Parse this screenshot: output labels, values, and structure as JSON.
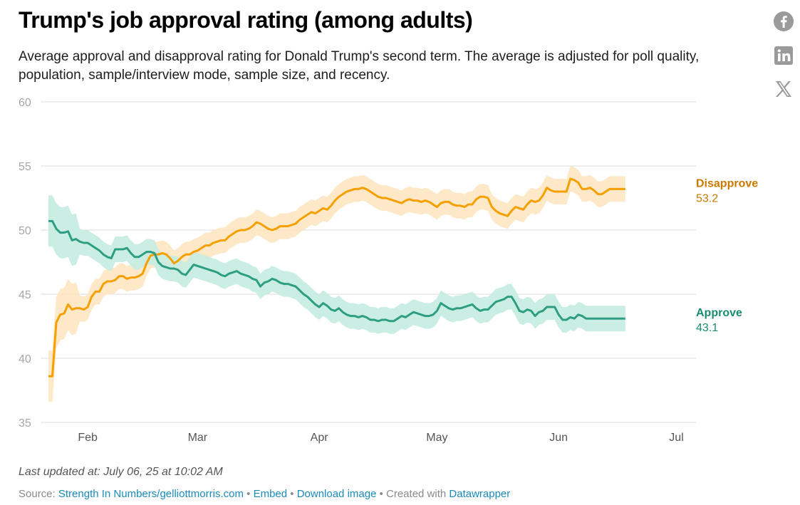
{
  "title": "Trump's job approval rating (among adults)",
  "subtitle": "Average approval and disapproval rating for Donald Trump's second term. The average is adjusted for poll quality, population, sample/interview mode, sample size, and recency.",
  "share_icons": [
    "facebook-icon",
    "linkedin-icon",
    "x-icon"
  ],
  "footer": {
    "updated": "Last updated at: July 06, 25 at 10:02 AM",
    "source_label": "Source: ",
    "source_link": "Strength In Numbers/gelliottmorris.com",
    "sep1": " • ",
    "embed": "Embed",
    "sep2": " • ",
    "download": "Download image",
    "created_prefix": " • Created with ",
    "created_link": "Datawrapper"
  },
  "colors": {
    "approve": "#2e9e83",
    "approve_band": "#c5ece1",
    "disapprove": "#f5a000",
    "disapprove_band": "#fde6c2",
    "approve_label": "#1a8c70",
    "disapprove_label": "#c97a00",
    "grid": "#dcdcdc",
    "link": "#1a8bbd"
  },
  "chart_data": {
    "type": "line",
    "title": "Trump's job approval rating (among adults)",
    "xlabel": "",
    "ylabel": "",
    "ylim": [
      35,
      60
    ],
    "yticks": [
      35,
      40,
      45,
      50,
      55,
      60
    ],
    "xlim": [
      20,
      187
    ],
    "x_unit": "day of year 2025",
    "xticks": [
      {
        "day": 32,
        "label": "Feb"
      },
      {
        "day": 60,
        "label": "Mar"
      },
      {
        "day": 91,
        "label": "Apr"
      },
      {
        "day": 121,
        "label": "May"
      },
      {
        "day": 152,
        "label": "Jun"
      },
      {
        "day": 182,
        "label": "Jul"
      }
    ],
    "end_day": 187,
    "series": [
      {
        "name": "Disapprove",
        "end_value": "53.2",
        "points": [
          [
            22,
            38.6
          ],
          [
            23,
            38.6
          ],
          [
            24,
            42.8
          ],
          [
            25,
            43.4
          ],
          [
            26,
            43.5
          ],
          [
            27,
            44.2
          ],
          [
            28,
            43.8
          ],
          [
            29,
            43.9
          ],
          [
            30,
            43.9
          ],
          [
            31,
            43.8
          ],
          [
            32,
            44.0
          ],
          [
            33,
            44.8
          ],
          [
            34,
            45.2
          ],
          [
            35,
            45.2
          ],
          [
            36,
            45.8
          ],
          [
            37,
            46.0
          ],
          [
            38,
            46.0
          ],
          [
            39,
            46.1
          ],
          [
            40,
            46.4
          ],
          [
            41,
            46.4
          ],
          [
            42,
            46.2
          ],
          [
            43,
            46.3
          ],
          [
            44,
            46.3
          ],
          [
            45,
            46.4
          ],
          [
            46,
            46.6
          ],
          [
            47,
            47.4
          ],
          [
            48,
            48.0
          ],
          [
            49,
            48.1
          ],
          [
            50,
            48.1
          ],
          [
            51,
            48.2
          ],
          [
            52,
            48.1
          ],
          [
            53,
            47.8
          ],
          [
            54,
            47.4
          ],
          [
            55,
            47.6
          ],
          [
            56,
            47.9
          ],
          [
            57,
            48.1
          ],
          [
            58,
            48.1
          ],
          [
            59,
            48.3
          ],
          [
            60,
            48.4
          ],
          [
            61,
            48.6
          ],
          [
            62,
            48.8
          ],
          [
            63,
            48.8
          ],
          [
            64,
            49.0
          ],
          [
            65,
            49.1
          ],
          [
            66,
            49.2
          ],
          [
            67,
            49.2
          ],
          [
            68,
            49.5
          ],
          [
            69,
            49.7
          ],
          [
            70,
            49.9
          ],
          [
            71,
            50.0
          ],
          [
            72,
            50.0
          ],
          [
            73,
            50.1
          ],
          [
            74,
            50.3
          ],
          [
            75,
            50.6
          ],
          [
            76,
            50.5
          ],
          [
            77,
            50.3
          ],
          [
            78,
            50.1
          ],
          [
            79,
            50.0
          ],
          [
            80,
            50.1
          ],
          [
            81,
            50.3
          ],
          [
            82,
            50.3
          ],
          [
            83,
            50.3
          ],
          [
            84,
            50.4
          ],
          [
            85,
            50.5
          ],
          [
            86,
            50.8
          ],
          [
            87,
            51.0
          ],
          [
            88,
            51.2
          ],
          [
            89,
            51.4
          ],
          [
            90,
            51.3
          ],
          [
            91,
            51.5
          ],
          [
            92,
            51.7
          ],
          [
            93,
            51.6
          ],
          [
            94,
            51.9
          ],
          [
            95,
            52.3
          ],
          [
            96,
            52.6
          ],
          [
            97,
            52.8
          ],
          [
            98,
            53.0
          ],
          [
            99,
            53.1
          ],
          [
            100,
            53.2
          ],
          [
            101,
            53.2
          ],
          [
            102,
            53.3
          ],
          [
            103,
            53.2
          ],
          [
            104,
            53.0
          ],
          [
            105,
            52.8
          ],
          [
            106,
            52.6
          ],
          [
            107,
            52.5
          ],
          [
            108,
            52.5
          ],
          [
            109,
            52.4
          ],
          [
            110,
            52.3
          ],
          [
            111,
            52.2
          ],
          [
            112,
            52.1
          ],
          [
            113,
            52.3
          ],
          [
            114,
            52.4
          ],
          [
            115,
            52.3
          ],
          [
            116,
            52.3
          ],
          [
            117,
            52.2
          ],
          [
            118,
            52.3
          ],
          [
            119,
            52.2
          ],
          [
            120,
            52.0
          ],
          [
            121,
            51.8
          ],
          [
            122,
            52.1
          ],
          [
            123,
            52.2
          ],
          [
            124,
            52.2
          ],
          [
            125,
            52.0
          ],
          [
            126,
            51.9
          ],
          [
            127,
            51.9
          ],
          [
            128,
            51.8
          ],
          [
            129,
            52.0
          ],
          [
            130,
            52.0
          ],
          [
            131,
            52.4
          ],
          [
            132,
            52.6
          ],
          [
            133,
            52.6
          ],
          [
            134,
            52.5
          ],
          [
            135,
            51.8
          ],
          [
            136,
            51.5
          ],
          [
            137,
            51.3
          ],
          [
            138,
            51.2
          ],
          [
            139,
            51.1
          ],
          [
            140,
            51.5
          ],
          [
            141,
            51.8
          ],
          [
            142,
            51.7
          ],
          [
            143,
            51.6
          ],
          [
            144,
            52.0
          ],
          [
            145,
            52.3
          ],
          [
            146,
            52.2
          ],
          [
            147,
            52.3
          ],
          [
            148,
            52.7
          ],
          [
            149,
            53.3
          ],
          [
            150,
            53.1
          ],
          [
            151,
            53.0
          ],
          [
            152,
            53.0
          ],
          [
            153,
            53.0
          ],
          [
            154,
            53.0
          ],
          [
            155,
            54.0
          ],
          [
            156,
            53.9
          ],
          [
            157,
            53.7
          ],
          [
            158,
            53.2
          ],
          [
            159,
            53.2
          ],
          [
            160,
            53.3
          ],
          [
            161,
            53.1
          ],
          [
            162,
            52.8
          ],
          [
            163,
            52.8
          ],
          [
            164,
            53.0
          ],
          [
            165,
            53.2
          ],
          [
            166,
            53.2
          ],
          [
            167,
            53.2
          ],
          [
            168,
            53.2
          ],
          [
            169,
            53.2
          ]
        ]
      },
      {
        "name": "Approve",
        "end_value": "43.1",
        "points": [
          [
            22,
            50.7
          ],
          [
            23,
            50.7
          ],
          [
            24,
            50.1
          ],
          [
            25,
            49.8
          ],
          [
            26,
            49.8
          ],
          [
            27,
            49.9
          ],
          [
            28,
            49.2
          ],
          [
            29,
            49.3
          ],
          [
            30,
            49.1
          ],
          [
            31,
            49.0
          ],
          [
            32,
            49.0
          ],
          [
            33,
            48.8
          ],
          [
            34,
            48.6
          ],
          [
            35,
            48.4
          ],
          [
            36,
            48.1
          ],
          [
            37,
            47.9
          ],
          [
            38,
            47.8
          ],
          [
            39,
            48.5
          ],
          [
            40,
            48.5
          ],
          [
            41,
            48.5
          ],
          [
            42,
            48.6
          ],
          [
            43,
            48.2
          ],
          [
            44,
            47.9
          ],
          [
            45,
            47.9
          ],
          [
            46,
            48.1
          ],
          [
            47,
            48.3
          ],
          [
            48,
            48.3
          ],
          [
            49,
            48.2
          ],
          [
            50,
            47.5
          ],
          [
            51,
            47.2
          ],
          [
            52,
            47.1
          ],
          [
            53,
            47.0
          ],
          [
            54,
            47.0
          ],
          [
            55,
            46.9
          ],
          [
            56,
            46.6
          ],
          [
            57,
            46.5
          ],
          [
            58,
            46.9
          ],
          [
            59,
            47.3
          ],
          [
            60,
            47.2
          ],
          [
            61,
            47.1
          ],
          [
            62,
            47.0
          ],
          [
            63,
            46.9
          ],
          [
            64,
            46.8
          ],
          [
            65,
            46.7
          ],
          [
            66,
            46.5
          ],
          [
            67,
            46.4
          ],
          [
            68,
            46.6
          ],
          [
            69,
            46.7
          ],
          [
            70,
            46.8
          ],
          [
            71,
            46.6
          ],
          [
            72,
            46.5
          ],
          [
            73,
            46.4
          ],
          [
            74,
            46.2
          ],
          [
            75,
            46.1
          ],
          [
            76,
            45.6
          ],
          [
            77,
            45.9
          ],
          [
            78,
            46.0
          ],
          [
            79,
            46.2
          ],
          [
            80,
            46.1
          ],
          [
            81,
            45.9
          ],
          [
            82,
            45.8
          ],
          [
            83,
            45.8
          ],
          [
            84,
            45.7
          ],
          [
            85,
            45.6
          ],
          [
            86,
            45.3
          ],
          [
            87,
            45.0
          ],
          [
            88,
            44.8
          ],
          [
            89,
            44.5
          ],
          [
            90,
            44.2
          ],
          [
            91,
            44.0
          ],
          [
            92,
            44.3
          ],
          [
            93,
            44.1
          ],
          [
            94,
            43.8
          ],
          [
            95,
            43.7
          ],
          [
            96,
            43.9
          ],
          [
            97,
            43.6
          ],
          [
            98,
            43.4
          ],
          [
            99,
            43.3
          ],
          [
            100,
            43.3
          ],
          [
            101,
            43.2
          ],
          [
            102,
            43.3
          ],
          [
            103,
            43.2
          ],
          [
            104,
            43.0
          ],
          [
            105,
            43.0
          ],
          [
            106,
            42.9
          ],
          [
            107,
            43.0
          ],
          [
            108,
            43.0
          ],
          [
            109,
            42.9
          ],
          [
            110,
            42.9
          ],
          [
            111,
            43.1
          ],
          [
            112,
            43.3
          ],
          [
            113,
            43.2
          ],
          [
            114,
            43.4
          ],
          [
            115,
            43.6
          ],
          [
            116,
            43.5
          ],
          [
            117,
            43.4
          ],
          [
            118,
            43.3
          ],
          [
            119,
            43.3
          ],
          [
            120,
            43.4
          ],
          [
            121,
            43.7
          ],
          [
            122,
            44.3
          ],
          [
            123,
            44.1
          ],
          [
            124,
            43.9
          ],
          [
            125,
            43.8
          ],
          [
            126,
            43.9
          ],
          [
            127,
            43.9
          ],
          [
            128,
            44.0
          ],
          [
            129,
            44.1
          ],
          [
            130,
            44.2
          ],
          [
            131,
            43.9
          ],
          [
            132,
            43.7
          ],
          [
            133,
            43.8
          ],
          [
            134,
            43.8
          ],
          [
            135,
            44.1
          ],
          [
            136,
            44.4
          ],
          [
            137,
            44.5
          ],
          [
            138,
            44.6
          ],
          [
            139,
            44.8
          ],
          [
            140,
            44.8
          ],
          [
            141,
            44.3
          ],
          [
            142,
            43.7
          ],
          [
            143,
            43.6
          ],
          [
            144,
            43.8
          ],
          [
            145,
            43.7
          ],
          [
            146,
            43.3
          ],
          [
            147,
            43.6
          ],
          [
            148,
            43.7
          ],
          [
            149,
            44.0
          ],
          [
            150,
            44.0
          ],
          [
            151,
            44.0
          ],
          [
            152,
            43.4
          ],
          [
            153,
            43.0
          ],
          [
            154,
            43.0
          ],
          [
            155,
            43.2
          ],
          [
            156,
            43.1
          ],
          [
            157,
            43.4
          ],
          [
            158,
            43.3
          ],
          [
            159,
            43.1
          ],
          [
            160,
            43.1
          ],
          [
            161,
            43.1
          ],
          [
            162,
            43.1
          ],
          [
            163,
            43.1
          ],
          [
            164,
            43.1
          ],
          [
            165,
            43.1
          ],
          [
            166,
            43.1
          ],
          [
            167,
            43.1
          ],
          [
            168,
            43.1
          ],
          [
            169,
            43.1
          ]
        ]
      }
    ]
  }
}
